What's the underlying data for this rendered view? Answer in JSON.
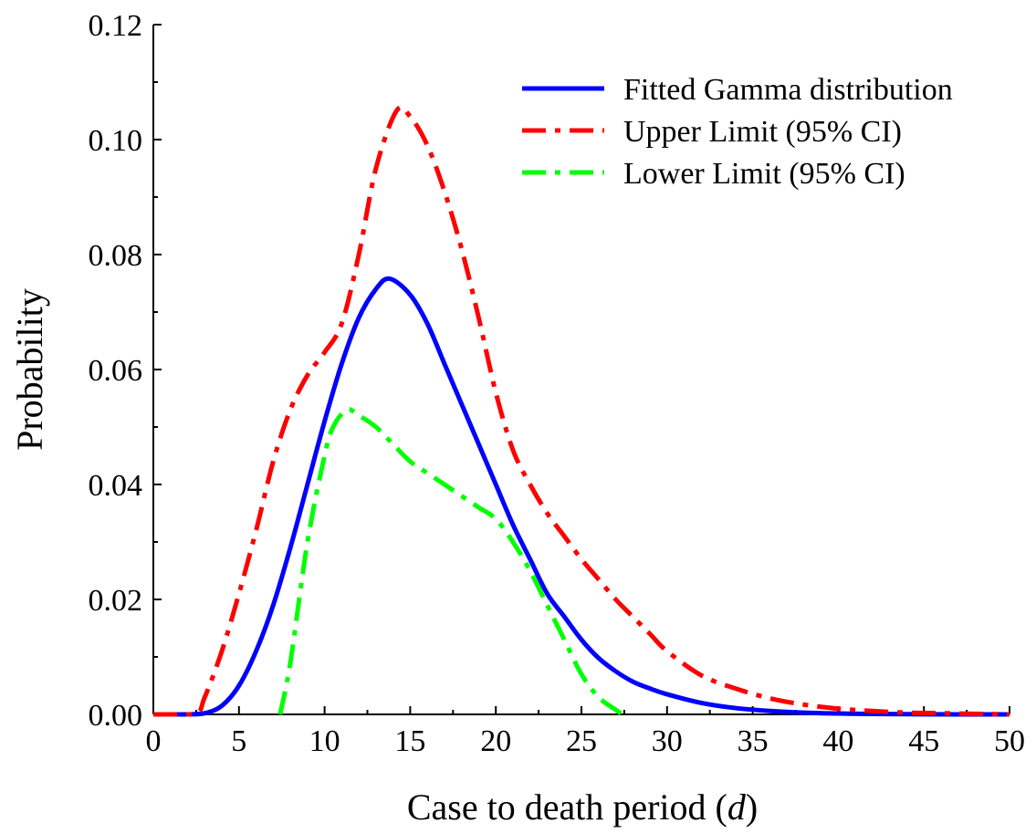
{
  "chart_data": {
    "type": "line",
    "xlabel": "Case to death period (d)",
    "xlabel_parts": {
      "main": "Case to death period (",
      "italic": "d",
      "close": ")"
    },
    "ylabel": "Probability",
    "xlim": [
      0,
      50
    ],
    "ylim": [
      0,
      0.12
    ],
    "xticks": [
      0,
      5,
      10,
      15,
      20,
      25,
      30,
      35,
      40,
      45,
      50
    ],
    "xtick_labels": [
      "0",
      "5",
      "10",
      "15",
      "20",
      "25",
      "30",
      "35",
      "40",
      "45",
      "50"
    ],
    "yticks": [
      0,
      0.02,
      0.04,
      0.06,
      0.08,
      0.1,
      0.12
    ],
    "ytick_labels": [
      "0.00",
      "0.02",
      "0.04",
      "0.06",
      "0.08",
      "0.10",
      "0.12"
    ],
    "grid": false,
    "legend_position": "top-right",
    "series": [
      {
        "name": "Fitted Gamma distribution",
        "color": "#0000ff",
        "style": "solid",
        "x": [
          0,
          2,
          3,
          4,
          5,
          6,
          7,
          8,
          9,
          10,
          11,
          12,
          13,
          13.8,
          15,
          16,
          17,
          18,
          19,
          20,
          21,
          22,
          23,
          24,
          25,
          26,
          27,
          28,
          29,
          30,
          32,
          34,
          36,
          38,
          40,
          42,
          45,
          50
        ],
        "y": [
          0,
          0,
          0.0002,
          0.0015,
          0.005,
          0.011,
          0.019,
          0.029,
          0.04,
          0.051,
          0.061,
          0.069,
          0.074,
          0.0758,
          0.073,
          0.068,
          0.061,
          0.054,
          0.047,
          0.04,
          0.033,
          0.027,
          0.021,
          0.017,
          0.013,
          0.0098,
          0.0075,
          0.0057,
          0.0045,
          0.0035,
          0.002,
          0.0011,
          0.0006,
          0.0003,
          0.00015,
          7e-05,
          2e-05,
          0
        ]
      },
      {
        "name": "Upper Limit (95% CI)",
        "color": "#ff0000",
        "style": "dash-dot",
        "x": [
          0,
          2.4,
          3,
          4,
          5,
          6,
          7,
          8,
          9,
          10,
          11,
          12,
          13,
          14.2,
          15,
          16,
          17,
          18,
          19,
          20,
          21,
          22,
          23,
          24,
          25,
          26,
          27,
          28,
          29,
          30,
          32,
          34,
          36,
          38,
          40,
          42,
          44,
          46,
          50
        ],
        "y": [
          0,
          0,
          0.003,
          0.011,
          0.021,
          0.032,
          0.044,
          0.053,
          0.059,
          0.063,
          0.068,
          0.08,
          0.095,
          0.105,
          0.104,
          0.099,
          0.091,
          0.081,
          0.069,
          0.056,
          0.046,
          0.04,
          0.035,
          0.031,
          0.027,
          0.0235,
          0.02,
          0.017,
          0.014,
          0.011,
          0.0068,
          0.0045,
          0.0028,
          0.0017,
          0.001,
          0.0006,
          0.0003,
          0.0002,
          0
        ]
      },
      {
        "name": "Lower Limit (95% CI)",
        "color": "#00ff00",
        "style": "dash-dot",
        "x": [
          7.4,
          8,
          9,
          10,
          10.5,
          11.3,
          12,
          13,
          14,
          15,
          16,
          17,
          18,
          19,
          20,
          21,
          22,
          23,
          24,
          25,
          26,
          27,
          27.4
        ],
        "y": [
          0,
          0.009,
          0.03,
          0.045,
          0.05,
          0.053,
          0.052,
          0.05,
          0.047,
          0.044,
          0.042,
          0.04,
          0.038,
          0.036,
          0.034,
          0.03,
          0.025,
          0.019,
          0.013,
          0.007,
          0.003,
          0.0008,
          0
        ]
      }
    ]
  }
}
